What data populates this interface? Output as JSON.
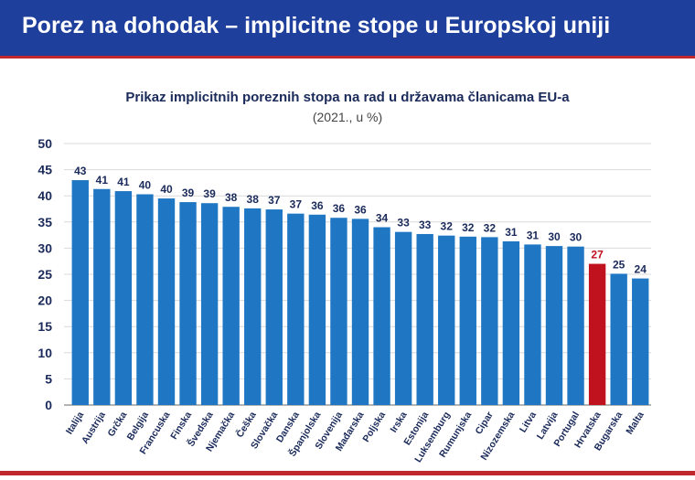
{
  "header": {
    "title": "Porez na dohodak – implicitne stope u Europskoj uniji"
  },
  "colors": {
    "header_bg": "#1f3f9c",
    "bar": "#1f77c4",
    "highlight_bar": "#c0111f",
    "highlight_label": "#c0111f",
    "value_label": "#1a2a5a"
  },
  "chart_data": {
    "type": "bar",
    "title": "Prikaz implicitnih poreznih stopa na rad u državama članicama EU-a",
    "subtitle": "(2021., u %)",
    "xlabel": "",
    "ylabel": "",
    "ylim": [
      0,
      50
    ],
    "yticks": [
      0,
      5,
      10,
      15,
      20,
      25,
      30,
      35,
      40,
      45,
      50
    ],
    "grid": true,
    "categories": [
      "Italija",
      "Austrija",
      "Grčka",
      "Belgija",
      "Francuska",
      "Finska",
      "Švedska",
      "Njemačka",
      "Češka",
      "Slovačka",
      "Danska",
      "Španjolska",
      "Slovenija",
      "Mađarska",
      "Poljska",
      "Irska",
      "Estonija",
      "Luksemburg",
      "Rumunjska",
      "Cipar",
      "Nizozemska",
      "Litva",
      "Latvija",
      "Portugal",
      "Hrvatska",
      "Bugarska",
      "Malta"
    ],
    "values": [
      43.0,
      41.3,
      40.9,
      40.3,
      39.5,
      38.8,
      38.6,
      37.9,
      37.6,
      37.4,
      36.6,
      36.4,
      35.8,
      35.6,
      34.0,
      33.1,
      32.7,
      32.4,
      32.2,
      32.1,
      31.3,
      30.7,
      30.4,
      30.3,
      27.0,
      25.1,
      24.2
    ],
    "value_labels": [
      "43",
      "41",
      "41",
      "40",
      "40",
      "39",
      "39",
      "38",
      "38",
      "37",
      "37",
      "36",
      "36",
      "36",
      "34",
      "33",
      "33",
      "32",
      "32",
      "32",
      "31",
      "31",
      "30",
      "30",
      "27",
      "25",
      "24"
    ],
    "highlight": "Hrvatska"
  }
}
